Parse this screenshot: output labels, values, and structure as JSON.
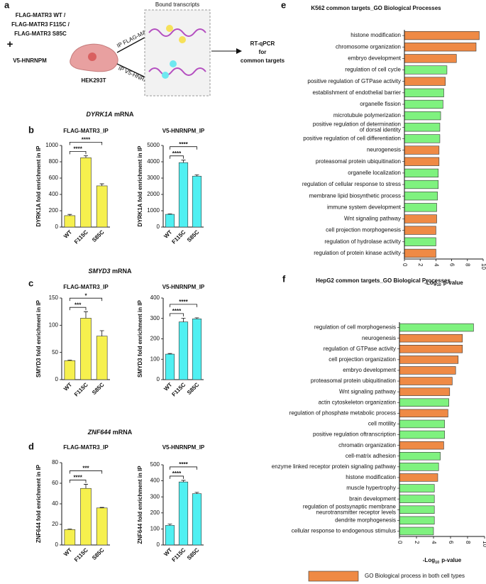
{
  "panel_labels": [
    "a",
    "b",
    "c",
    "d",
    "e",
    "f"
  ],
  "schematic": {
    "constructs": [
      "FLAG-MATR3 WT /",
      "FLAG-MATR3 F115C /",
      "FLAG-MATR3 S85C"
    ],
    "plus": "+",
    "cotransfected": "V5-HNRNPM",
    "cell_line": "HEK293T",
    "ip_top": "IP FLAG-MATR3",
    "ip_bottom": "IP V5-HNRNPM",
    "box_title": "Bound transcripts",
    "readout": [
      "RT-qPCR",
      "for",
      "common targets"
    ]
  },
  "gene_headers": [
    {
      "gene": "DYRK1A",
      "suffix": "mRNA"
    },
    {
      "gene": "SMYD3",
      "suffix": "mRNA"
    },
    {
      "gene": "ZNF644",
      "suffix": "mRNA"
    }
  ],
  "legend": {
    "label": "GO Biological process in both cell types",
    "color": "#ef8a45"
  },
  "chart_data": [
    {
      "type": "bar",
      "title": "FLAG-MATR3_IP",
      "ylabel": "DYRK1A fold enrichment in IP",
      "categories": [
        "WT",
        "F115C",
        "S85C"
      ],
      "values": [
        140,
        850,
        505
      ],
      "errors": [
        15,
        25,
        25
      ],
      "color": "#f6f04e",
      "ylim": [
        0,
        1000
      ],
      "yticks": [
        0,
        200,
        400,
        600,
        800,
        1000
      ],
      "significance": [
        "****",
        "****"
      ]
    },
    {
      "type": "bar",
      "title": "V5-HNRNPM_IP",
      "ylabel": "DYRK1A fold enrichment in IP",
      "categories": [
        "WT",
        "F115C",
        "S85C"
      ],
      "values": [
        780,
        3950,
        3120
      ],
      "errors": [
        30,
        150,
        80
      ],
      "color": "#4ff0f2",
      "ylim": [
        0,
        5000
      ],
      "yticks": [
        0,
        1000,
        2000,
        3000,
        4000,
        5000
      ],
      "significance": [
        "****",
        "****"
      ]
    },
    {
      "type": "bar",
      "title": "FLAG-MATR3_IP",
      "ylabel": "SMYD3 fold enrichment in IP",
      "categories": [
        "WT",
        "F115C",
        "S85C"
      ],
      "values": [
        35,
        113,
        80
      ],
      "errors": [
        1,
        12,
        10
      ],
      "color": "#f6f04e",
      "ylim": [
        0,
        150
      ],
      "yticks": [
        0,
        50,
        100,
        150
      ],
      "significance": [
        "***",
        "*"
      ]
    },
    {
      "type": "bar",
      "title": "V5-HNRNPM_IP",
      "ylabel": "SMYD3 fold enrichment in IP",
      "categories": [
        "WT",
        "F115C",
        "S85C"
      ],
      "values": [
        125,
        283,
        298
      ],
      "errors": [
        3,
        18,
        5
      ],
      "color": "#4ff0f2",
      "ylim": [
        0,
        400
      ],
      "yticks": [
        0,
        100,
        200,
        300,
        400
      ],
      "significance": [
        "****",
        "****"
      ]
    },
    {
      "type": "bar",
      "title": "FLAG-MATR3_IP",
      "ylabel": "ZNF644 fold enrichment in IP",
      "categories": [
        "WT",
        "F115C",
        "S85C"
      ],
      "values": [
        15,
        55,
        36
      ],
      "errors": [
        0.5,
        4,
        0.5
      ],
      "color": "#f6f04e",
      "ylim": [
        0,
        80
      ],
      "yticks": [
        0,
        20,
        40,
        60,
        80
      ],
      "significance": [
        "****",
        "***"
      ]
    },
    {
      "type": "bar",
      "title": "V5-HNRNPM_IP",
      "ylabel": "ZNF644 fold enrichment in IP",
      "categories": [
        "WT",
        "F115C",
        "S85C"
      ],
      "values": [
        122,
        393,
        320
      ],
      "errors": [
        8,
        10,
        8
      ],
      "color": "#4ff0f2",
      "ylim": [
        0,
        500
      ],
      "yticks": [
        0,
        100,
        200,
        300,
        400,
        500
      ],
      "significance": [
        "****",
        "****"
      ]
    },
    {
      "type": "hbar",
      "title": "K562 common targets_GO Biological Processes",
      "xlabel": [
        "-Log",
        "10",
        "p-value"
      ],
      "categories": [
        "histone modification",
        "chromosome organization",
        "embryo development",
        "regulation of cell cycle",
        "positive regulation of GTPase activity",
        "establishment of endothelial barrier",
        "organelle fission",
        "microtubule polymerization",
        [
          "positive regulation of determination",
          "of dorsal identity"
        ],
        "positive regulation of cell differentiation",
        "neurogenesis",
        "proteasomal protein ubiquitination",
        "organelle localization",
        "regulation of cellular response to stress",
        "membrane lipid biosynthetic process",
        "immune system development",
        "Wnt signaling pathway",
        "cell projection morphogenesis",
        "regulation of hydrolase activity",
        "regulation of protein kinase activity"
      ],
      "values": [
        9.5,
        9.1,
        6.6,
        5.4,
        5.2,
        5.0,
        4.9,
        4.6,
        4.5,
        4.5,
        4.4,
        4.4,
        4.3,
        4.3,
        4.2,
        4.1,
        4.1,
        4.0,
        4.0,
        4.0
      ],
      "colors": [
        "#ef8a45",
        "#ef8a45",
        "#ef8a45",
        "#7ff27f",
        "#ef8a45",
        "#7ff27f",
        "#7ff27f",
        "#7ff27f",
        "#7ff27f",
        "#7ff27f",
        "#ef8a45",
        "#ef8a45",
        "#7ff27f",
        "#7ff27f",
        "#7ff27f",
        "#7ff27f",
        "#ef8a45",
        "#ef8a45",
        "#7ff27f",
        "#ef8a45"
      ],
      "xlim": [
        0,
        10
      ],
      "xticks": [
        0,
        2,
        4,
        6,
        8,
        10
      ]
    },
    {
      "type": "hbar",
      "title": "HepG2 common targets_GO Biological Processes",
      "xlabel": [
        "-Log",
        "10",
        "p-value"
      ],
      "categories": [
        "regulation of cell morphogenesis",
        "neurogenesis",
        "regulation of GTPase activity",
        "cell projection organization",
        "embryo development",
        "proteasomal protein ubiquitination",
        "Wnt signaling pathway",
        "actin cytoskeleton organization",
        "regulation of phosphate metabolic process",
        "cell motility",
        "positive regulation oftranscription",
        "chromatin organization",
        "cell-matrix adhesion",
        "enzyme linked receptor protein signaling pathway",
        "histone modification",
        "muscle hypertrophy",
        "brain development",
        [
          "regulation of postsynaptic membrane",
          "neurotransmitter receptor levels"
        ],
        "dendrite morphogenesis",
        "cellular response to endogenous stimulus"
      ],
      "values": [
        8.7,
        7.4,
        7.4,
        6.9,
        6.6,
        6.2,
        5.9,
        5.8,
        5.7,
        5.3,
        5.3,
        5.2,
        4.8,
        4.6,
        4.5,
        4.1,
        4.1,
        4.1,
        4.1,
        4.0
      ],
      "colors": [
        "#7ff27f",
        "#ef8a45",
        "#ef8a45",
        "#ef8a45",
        "#ef8a45",
        "#ef8a45",
        "#ef8a45",
        "#7ff27f",
        "#ef8a45",
        "#7ff27f",
        "#7ff27f",
        "#ef8a45",
        "#7ff27f",
        "#7ff27f",
        "#ef8a45",
        "#7ff27f",
        "#7ff27f",
        "#7ff27f",
        "#7ff27f",
        "#7ff27f"
      ],
      "xlim": [
        0,
        10
      ],
      "xticks": [
        0,
        2,
        4,
        6,
        8,
        10
      ]
    }
  ]
}
